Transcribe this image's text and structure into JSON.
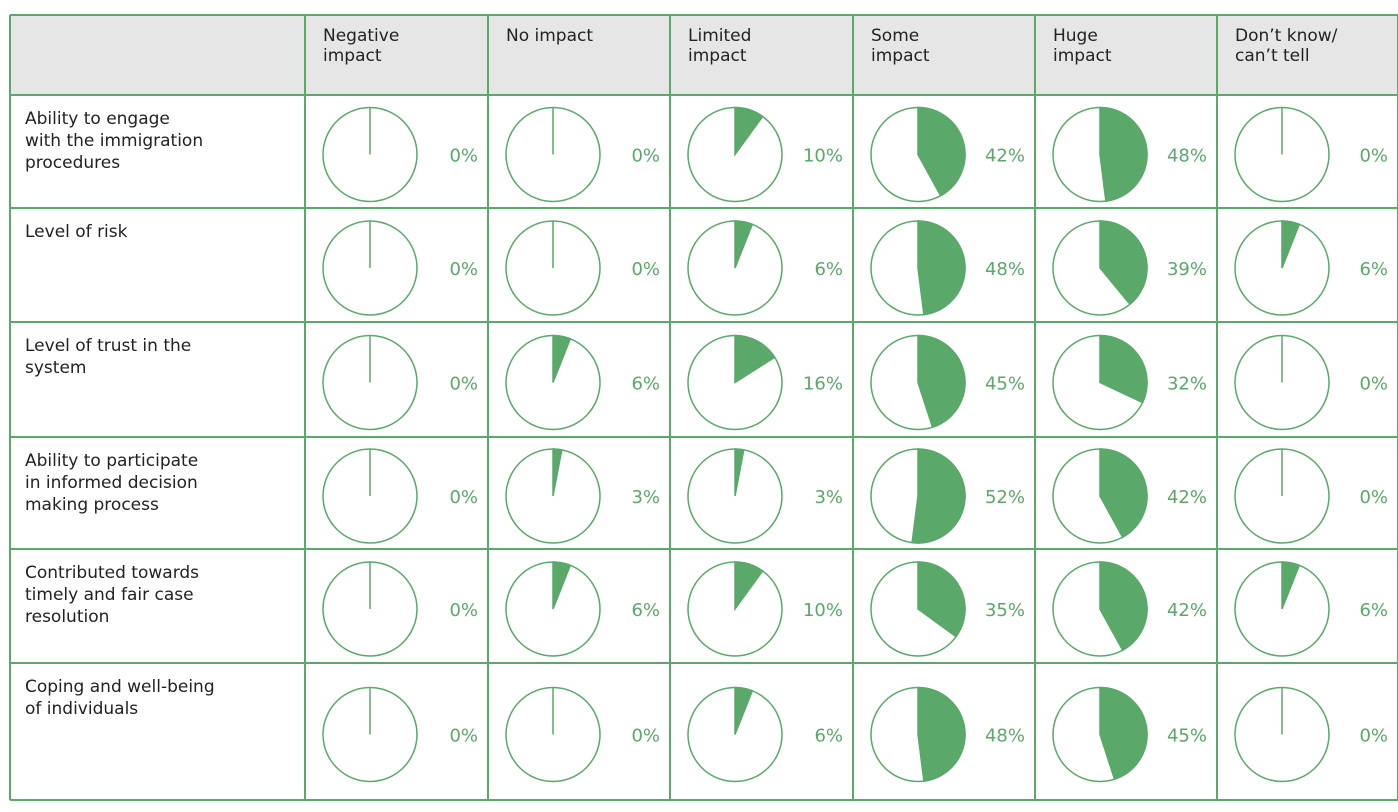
{
  "table": {
    "color": "#5aa86a",
    "columns": [
      [
        "Negative",
        "impact"
      ],
      [
        "No impact"
      ],
      [
        "Limited",
        "impact"
      ],
      [
        "Some",
        "impact"
      ],
      [
        "Huge",
        "impact"
      ],
      [
        "Don’t know/",
        "can’t tell"
      ]
    ],
    "rows": [
      {
        "label": [
          "Ability to engage",
          "with the immigration",
          "procedures"
        ],
        "values": [
          0,
          0,
          10,
          42,
          48,
          0
        ],
        "value_labels": [
          "0%",
          "0%",
          "10%",
          "42%",
          "48%",
          "0%"
        ]
      },
      {
        "label": [
          "Level of risk"
        ],
        "values": [
          0,
          0,
          6,
          48,
          39,
          6
        ],
        "value_labels": [
          "0%",
          "0%",
          "6%",
          "48%",
          "39%",
          "6%"
        ]
      },
      {
        "label": [
          "Level of trust in the",
          "system"
        ],
        "values": [
          0,
          6,
          16,
          45,
          32,
          0
        ],
        "value_labels": [
          "0%",
          "6%",
          "16%",
          "45%",
          "32%",
          "0%"
        ]
      },
      {
        "label": [
          "Ability to participate",
          "in informed decision",
          "making process"
        ],
        "values": [
          0,
          3,
          3,
          52,
          42,
          0
        ],
        "value_labels": [
          "0%",
          "3%",
          "3%",
          "52%",
          "42%",
          "0%"
        ]
      },
      {
        "label": [
          "Contributed towards",
          "timely and fair case",
          "resolution"
        ],
        "values": [
          0,
          6,
          10,
          35,
          42,
          6
        ],
        "value_labels": [
          "0%",
          "6%",
          "10%",
          "35%",
          "42%",
          "6%"
        ]
      },
      {
        "label": [
          "Coping and well-being",
          "of individuals"
        ],
        "values": [
          0,
          0,
          6,
          48,
          45,
          0
        ],
        "value_labels": [
          "0%",
          "0%",
          "6%",
          "48%",
          "45%",
          "0%"
        ]
      }
    ]
  }
}
